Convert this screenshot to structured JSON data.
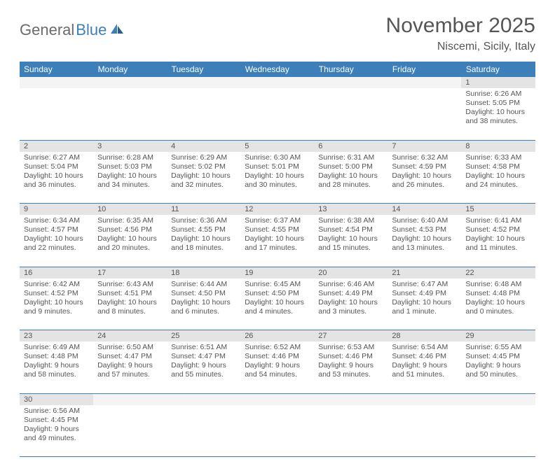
{
  "brand": {
    "name_gray": "General",
    "name_blue": "Blue"
  },
  "title": "November 2025",
  "location": "Niscemi, Sicily, Italy",
  "colors": {
    "header_bg": "#3d7fb8",
    "header_text": "#ffffff",
    "daynum_bg": "#e4e4e4",
    "empty_bg": "#f4f4f4",
    "text": "#555555",
    "border": "#3d7fb8"
  },
  "day_headers": [
    "Sunday",
    "Monday",
    "Tuesday",
    "Wednesday",
    "Thursday",
    "Friday",
    "Saturday"
  ],
  "weeks": [
    [
      null,
      null,
      null,
      null,
      null,
      null,
      {
        "n": "1",
        "sr": "Sunrise: 6:26 AM",
        "ss": "Sunset: 5:05 PM",
        "dl": "Daylight: 10 hours and 38 minutes."
      }
    ],
    [
      {
        "n": "2",
        "sr": "Sunrise: 6:27 AM",
        "ss": "Sunset: 5:04 PM",
        "dl": "Daylight: 10 hours and 36 minutes."
      },
      {
        "n": "3",
        "sr": "Sunrise: 6:28 AM",
        "ss": "Sunset: 5:03 PM",
        "dl": "Daylight: 10 hours and 34 minutes."
      },
      {
        "n": "4",
        "sr": "Sunrise: 6:29 AM",
        "ss": "Sunset: 5:02 PM",
        "dl": "Daylight: 10 hours and 32 minutes."
      },
      {
        "n": "5",
        "sr": "Sunrise: 6:30 AM",
        "ss": "Sunset: 5:01 PM",
        "dl": "Daylight: 10 hours and 30 minutes."
      },
      {
        "n": "6",
        "sr": "Sunrise: 6:31 AM",
        "ss": "Sunset: 5:00 PM",
        "dl": "Daylight: 10 hours and 28 minutes."
      },
      {
        "n": "7",
        "sr": "Sunrise: 6:32 AM",
        "ss": "Sunset: 4:59 PM",
        "dl": "Daylight: 10 hours and 26 minutes."
      },
      {
        "n": "8",
        "sr": "Sunrise: 6:33 AM",
        "ss": "Sunset: 4:58 PM",
        "dl": "Daylight: 10 hours and 24 minutes."
      }
    ],
    [
      {
        "n": "9",
        "sr": "Sunrise: 6:34 AM",
        "ss": "Sunset: 4:57 PM",
        "dl": "Daylight: 10 hours and 22 minutes."
      },
      {
        "n": "10",
        "sr": "Sunrise: 6:35 AM",
        "ss": "Sunset: 4:56 PM",
        "dl": "Daylight: 10 hours and 20 minutes."
      },
      {
        "n": "11",
        "sr": "Sunrise: 6:36 AM",
        "ss": "Sunset: 4:55 PM",
        "dl": "Daylight: 10 hours and 18 minutes."
      },
      {
        "n": "12",
        "sr": "Sunrise: 6:37 AM",
        "ss": "Sunset: 4:55 PM",
        "dl": "Daylight: 10 hours and 17 minutes."
      },
      {
        "n": "13",
        "sr": "Sunrise: 6:38 AM",
        "ss": "Sunset: 4:54 PM",
        "dl": "Daylight: 10 hours and 15 minutes."
      },
      {
        "n": "14",
        "sr": "Sunrise: 6:40 AM",
        "ss": "Sunset: 4:53 PM",
        "dl": "Daylight: 10 hours and 13 minutes."
      },
      {
        "n": "15",
        "sr": "Sunrise: 6:41 AM",
        "ss": "Sunset: 4:52 PM",
        "dl": "Daylight: 10 hours and 11 minutes."
      }
    ],
    [
      {
        "n": "16",
        "sr": "Sunrise: 6:42 AM",
        "ss": "Sunset: 4:52 PM",
        "dl": "Daylight: 10 hours and 9 minutes."
      },
      {
        "n": "17",
        "sr": "Sunrise: 6:43 AM",
        "ss": "Sunset: 4:51 PM",
        "dl": "Daylight: 10 hours and 8 minutes."
      },
      {
        "n": "18",
        "sr": "Sunrise: 6:44 AM",
        "ss": "Sunset: 4:50 PM",
        "dl": "Daylight: 10 hours and 6 minutes."
      },
      {
        "n": "19",
        "sr": "Sunrise: 6:45 AM",
        "ss": "Sunset: 4:50 PM",
        "dl": "Daylight: 10 hours and 4 minutes."
      },
      {
        "n": "20",
        "sr": "Sunrise: 6:46 AM",
        "ss": "Sunset: 4:49 PM",
        "dl": "Daylight: 10 hours and 3 minutes."
      },
      {
        "n": "21",
        "sr": "Sunrise: 6:47 AM",
        "ss": "Sunset: 4:49 PM",
        "dl": "Daylight: 10 hours and 1 minute."
      },
      {
        "n": "22",
        "sr": "Sunrise: 6:48 AM",
        "ss": "Sunset: 4:48 PM",
        "dl": "Daylight: 10 hours and 0 minutes."
      }
    ],
    [
      {
        "n": "23",
        "sr": "Sunrise: 6:49 AM",
        "ss": "Sunset: 4:48 PM",
        "dl": "Daylight: 9 hours and 58 minutes."
      },
      {
        "n": "24",
        "sr": "Sunrise: 6:50 AM",
        "ss": "Sunset: 4:47 PM",
        "dl": "Daylight: 9 hours and 57 minutes."
      },
      {
        "n": "25",
        "sr": "Sunrise: 6:51 AM",
        "ss": "Sunset: 4:47 PM",
        "dl": "Daylight: 9 hours and 55 minutes."
      },
      {
        "n": "26",
        "sr": "Sunrise: 6:52 AM",
        "ss": "Sunset: 4:46 PM",
        "dl": "Daylight: 9 hours and 54 minutes."
      },
      {
        "n": "27",
        "sr": "Sunrise: 6:53 AM",
        "ss": "Sunset: 4:46 PM",
        "dl": "Daylight: 9 hours and 53 minutes."
      },
      {
        "n": "28",
        "sr": "Sunrise: 6:54 AM",
        "ss": "Sunset: 4:46 PM",
        "dl": "Daylight: 9 hours and 51 minutes."
      },
      {
        "n": "29",
        "sr": "Sunrise: 6:55 AM",
        "ss": "Sunset: 4:45 PM",
        "dl": "Daylight: 9 hours and 50 minutes."
      }
    ],
    [
      {
        "n": "30",
        "sr": "Sunrise: 6:56 AM",
        "ss": "Sunset: 4:45 PM",
        "dl": "Daylight: 9 hours and 49 minutes."
      },
      null,
      null,
      null,
      null,
      null,
      null
    ]
  ]
}
